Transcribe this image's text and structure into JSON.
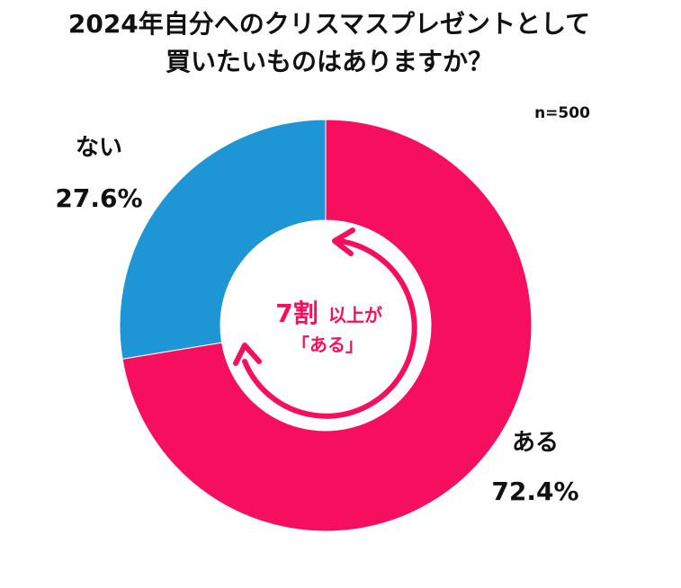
{
  "chart_data": {
    "type": "donut",
    "title": [
      "2024年自分へのクリスマスプレゼントとして",
      "買いたいものはありますか？"
    ],
    "subtitle": "n=500",
    "categories": [
      "ある",
      "ない"
    ],
    "values": [
      72.4,
      27.6
    ],
    "value_labels": [
      "72.4%",
      "27.6%"
    ],
    "colors": [
      "#f50f5e",
      "#1e96d5"
    ],
    "annotation": [
      "7割",
      "以上が",
      "「ある」"
    ]
  }
}
